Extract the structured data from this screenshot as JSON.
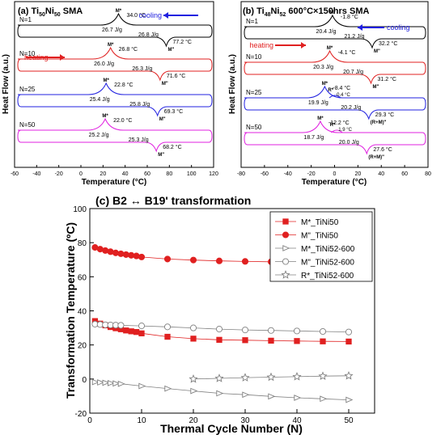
{
  "chart_data": [
    {
      "panel_label": "(a)",
      "title": "Ti50Ni50 SMA",
      "title_parts": [
        "(a) Ti",
        "50",
        "Ni",
        "50",
        " SMA"
      ],
      "type": "line",
      "xlabel": "Temperature (°C)",
      "ylabel": "Heat Flow (a.u.)",
      "xlim": [
        -60,
        120
      ],
      "xticks": [
        "-60",
        "-40",
        "-20",
        "0",
        "20",
        "40",
        "60",
        "80",
        "100",
        "120"
      ],
      "arrows": {
        "cooling": "cooling",
        "heating": "heating"
      },
      "cycles": [
        {
          "n_label": "N=1",
          "color": "#000000",
          "cool_peak": "M*",
          "cool_temp": "34.0 °C",
          "cool_enthalpy": "26.7 J/g",
          "heat_peak": "M\"",
          "heat_temp": "77.2 °C",
          "heat_enthalpy": "26.8 J/g",
          "cool_x": 34.0,
          "heat_x": 77.2
        },
        {
          "n_label": "N=10",
          "color": "#e02020",
          "cool_peak": "M*",
          "cool_temp": "26.8 °C",
          "cool_enthalpy": "26.0 J/g",
          "heat_peak": "M\"",
          "heat_temp": "71.6 °C",
          "heat_enthalpy": "26.3 J/g",
          "cool_x": 26.8,
          "heat_x": 71.6
        },
        {
          "n_label": "N=25",
          "color": "#2020e0",
          "cool_peak": "M*",
          "cool_temp": "22.8 °C",
          "cool_enthalpy": "25.4 J/g",
          "heat_peak": "M\"",
          "heat_temp": "69.3 °C",
          "heat_enthalpy": "25.8 J/g",
          "cool_x": 22.8,
          "heat_x": 69.3
        },
        {
          "n_label": "N=50",
          "color": "#e020e0",
          "cool_peak": "M*",
          "cool_temp": "22.0 °C",
          "cool_enthalpy": "25.2 J/g",
          "heat_peak": "M\"",
          "heat_temp": "68.2 °C",
          "heat_enthalpy": "25.3 J/g",
          "cool_x": 22.0,
          "heat_x": 68.2
        }
      ]
    },
    {
      "panel_label": "(b)",
      "title": "Ti48Ni52 600°C×150hrs SMA",
      "title_parts": [
        "(b) Ti",
        "48",
        "Ni",
        "52",
        " 600°C×150hrs SMA"
      ],
      "type": "line",
      "xlabel": "Temperature (°C)",
      "ylabel": "Heat Flow (a.u.)",
      "xlim": [
        -80,
        80
      ],
      "xticks": [
        "-80",
        "-60",
        "-40",
        "-20",
        "0",
        "20",
        "40",
        "60",
        "80"
      ],
      "arrows": {
        "cooling": "cooling",
        "heating": "heating"
      },
      "cycles": [
        {
          "n_label": "N=1",
          "color": "#000000",
          "cool_peak": "M*",
          "cool_temp": "-1.8 °C",
          "cool_enthalpy": "20.4 J/g",
          "heat_peak": "M\"",
          "heat_temp": "32.2 °C",
          "heat_enthalpy": "21.2 J/g",
          "cool_x": -1.8,
          "heat_x": 32.2
        },
        {
          "n_label": "N=10",
          "color": "#e02020",
          "cool_peak": "M*",
          "cool_temp": "-4.1 °C",
          "cool_enthalpy": "20.3 J/g",
          "heat_peak": "M\"",
          "heat_temp": "31.2 °C",
          "heat_enthalpy": "20.7 J/g",
          "cool_x": -4.1,
          "heat_x": 31.2
        },
        {
          "n_label": "N=25",
          "color": "#2020e0",
          "cool_peak": "M*",
          "cool_temp": "-8.4 °C",
          "cool_enthalpy": "19.9 J/g",
          "r_peak": "R*",
          "r_temp": "0.4 °C",
          "heat_peak": "(R+M)\"",
          "heat_temp": "29.3 °C",
          "heat_enthalpy": "20.2 J/g",
          "cool_x": -8.4,
          "r_x": 0.4,
          "heat_x": 29.3
        },
        {
          "n_label": "N=50",
          "color": "#e020e0",
          "cool_peak": "M*",
          "cool_temp": "-12.2 °C",
          "cool_enthalpy": "18.7 J/g",
          "r_peak": "R*",
          "r_temp": "1.9 °C",
          "heat_peak": "(R+M)\"",
          "heat_temp": "27.6 °C",
          "heat_enthalpy": "20.0 J/g",
          "cool_x": -12.2,
          "r_x": 1.9,
          "heat_x": 27.6
        }
      ]
    },
    {
      "panel_label": "(c)",
      "title": "(c) B2 ↔ B19' transformation",
      "type": "scatter",
      "xlabel": "Thermal Cycle Number (N)",
      "ylabel": "Transformation Temperature (ºC)",
      "xlim": [
        0,
        55
      ],
      "ylim": [
        -20,
        100
      ],
      "xticks": [
        "0",
        "10",
        "20",
        "30",
        "40",
        "50"
      ],
      "yticks": [
        "-20",
        "0",
        "20",
        "40",
        "60",
        "80",
        "100"
      ],
      "legend_position": "top-right",
      "series": [
        {
          "name": "M*_TiNi50",
          "color": "#e02020",
          "marker": "square-filled",
          "x": [
            1,
            2,
            3,
            4,
            5,
            6,
            7,
            8,
            9,
            10,
            15,
            20,
            25,
            30,
            35,
            40,
            45,
            50
          ],
          "y": [
            34,
            32.5,
            31.5,
            30.5,
            29.8,
            29.2,
            28.5,
            28,
            27.6,
            26.8,
            24.8,
            23.7,
            23,
            22.8,
            22.5,
            22.3,
            22.1,
            22
          ]
        },
        {
          "name": "M\"_TiNi50",
          "color": "#e02020",
          "marker": "circle-filled",
          "x": [
            1,
            2,
            3,
            4,
            5,
            6,
            7,
            8,
            9,
            10,
            15,
            20,
            25,
            30,
            35,
            40,
            45,
            50
          ],
          "y": [
            77.2,
            76.2,
            75.4,
            74.7,
            74,
            73.5,
            73,
            72.6,
            72.2,
            71.6,
            70.4,
            69.8,
            69.3,
            69,
            68.8,
            68.5,
            68.4,
            68.2
          ]
        },
        {
          "name": "M*_TiNi52-600",
          "color": "#808080",
          "marker": "triangle-right-open",
          "x": [
            1,
            2,
            3,
            4,
            5,
            6,
            10,
            15,
            20,
            25,
            30,
            35,
            40,
            45,
            50
          ],
          "y": [
            -1.8,
            -2,
            -2.2,
            -2.4,
            -2.6,
            -2.8,
            -4.1,
            -5.6,
            -7,
            -8.4,
            -9.2,
            -10.2,
            -11,
            -11.6,
            -12.2
          ]
        },
        {
          "name": "M\"_TiNi52-600",
          "color": "#808080",
          "marker": "circle-open",
          "x": [
            1,
            2,
            3,
            4,
            5,
            6,
            10,
            15,
            20,
            25,
            30,
            35,
            40,
            45,
            50
          ],
          "y": [
            32.2,
            32,
            31.8,
            31.7,
            31.6,
            31.5,
            31.2,
            30.6,
            30,
            29.3,
            28.8,
            28.5,
            28.2,
            27.9,
            27.6
          ]
        },
        {
          "name": "R*_TiNi52-600",
          "color": "#808080",
          "marker": "star-open",
          "x": [
            20,
            25,
            30,
            35,
            40,
            45,
            50
          ],
          "y": [
            0,
            0.4,
            0.8,
            1.1,
            1.4,
            1.7,
            1.9
          ]
        }
      ]
    }
  ]
}
